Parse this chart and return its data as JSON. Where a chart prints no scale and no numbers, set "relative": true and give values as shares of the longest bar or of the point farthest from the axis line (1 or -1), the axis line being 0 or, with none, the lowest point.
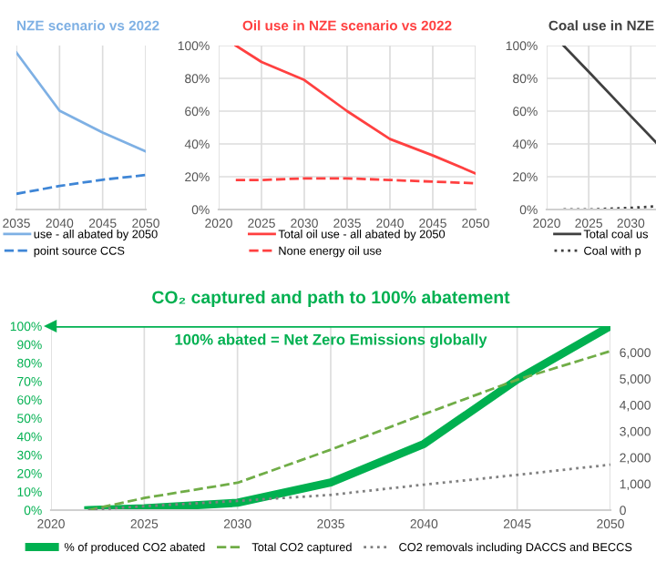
{
  "chart_data": [
    {
      "type": "line",
      "title": "NZE scenario vs 2022",
      "x": [
        2035,
        2040,
        2045,
        2050
      ],
      "xlim": [
        2035,
        2050
      ],
      "xticks": [
        2035,
        2040,
        2045,
        2050
      ],
      "relative": true,
      "grid": "x",
      "legend": "bottom",
      "series": [
        {
          "name": "use - all abated by 2050",
          "color": "#7eb0e4",
          "values": [
            1,
            0.63,
            0.49,
            0.37
          ]
        },
        {
          "name": "point source CCS",
          "color": "#3f86d6",
          "values": [
            0.1,
            0.15,
            0.19,
            0.22
          ],
          "line_style": "dashed"
        }
      ]
    },
    {
      "type": "line",
      "title": "Oil use in NZE scenario vs 2022",
      "x": [
        2022,
        2025,
        2030,
        2035,
        2040,
        2045,
        2050
      ],
      "xlim": [
        2020,
        2050
      ],
      "xticks": [
        2020,
        2025,
        2030,
        2035,
        2040,
        2045,
        2050
      ],
      "ylim": [
        0,
        100
      ],
      "yticks": [
        {
          "value": 0,
          "label": "0%"
        },
        {
          "value": 20,
          "label": "20%"
        },
        {
          "value": 40,
          "label": "40%"
        },
        {
          "value": 60,
          "label": "60%"
        },
        {
          "value": 80,
          "label": "80%"
        },
        {
          "value": 100,
          "label": "100%"
        }
      ],
      "grid": true,
      "legend": "bottom",
      "series": [
        {
          "name": "Total oil use - all abated by 2050",
          "color": "#ff4040",
          "values": [
            100,
            90,
            79,
            60,
            43,
            33,
            22
          ]
        },
        {
          "name": "None energy oil use",
          "color": "#ff4040",
          "values": [
            18,
            18,
            19,
            19,
            18,
            17,
            16
          ],
          "line_style": "dashed"
        }
      ]
    },
    {
      "type": "line",
      "title": "Coal use in NZE",
      "x": [
        2022,
        2025,
        2030,
        2033
      ],
      "xlim": [
        2020,
        2033
      ],
      "xticks": [
        2020,
        2025,
        2030
      ],
      "ylim": [
        0,
        100
      ],
      "yticks": [
        {
          "value": 0,
          "label": "0%"
        },
        {
          "value": 20,
          "label": "20%"
        },
        {
          "value": 40,
          "label": "40%"
        },
        {
          "value": 60,
          "label": "60%"
        },
        {
          "value": 80,
          "label": "80%"
        },
        {
          "value": 100,
          "label": "100%"
        }
      ],
      "grid": true,
      "legend": "bottom",
      "series": [
        {
          "name": "Total coal us",
          "color": "#404040",
          "values": [
            100,
            84,
            57,
            41
          ]
        },
        {
          "name": "Coal with p",
          "color": "#404040",
          "values": [
            0,
            0,
            1,
            2
          ],
          "line_style": "dotted"
        }
      ]
    },
    {
      "type": "line",
      "title": "CO₂ captured and path to 100% abatement",
      "x": [
        2022,
        2025,
        2030,
        2035,
        2040,
        2045,
        2050
      ],
      "xlim": [
        2020,
        2050
      ],
      "xticks": [
        2020,
        2025,
        2030,
        2035,
        2040,
        2045,
        2050
      ],
      "ylim": [
        0,
        100
      ],
      "yticks": [
        {
          "value": 0,
          "label": "0%"
        },
        {
          "value": 10,
          "label": "10%"
        },
        {
          "value": 20,
          "label": "20%"
        },
        {
          "value": 30,
          "label": "30%"
        },
        {
          "value": 40,
          "label": "40%"
        },
        {
          "value": 50,
          "label": "50%"
        },
        {
          "value": 60,
          "label": "60%"
        },
        {
          "value": 70,
          "label": "70%"
        },
        {
          "value": 80,
          "label": "80%"
        },
        {
          "value": 90,
          "label": "90%"
        },
        {
          "value": 100,
          "label": "100%"
        }
      ],
      "y2lim": [
        0,
        7000
      ],
      "y2ticks": [
        {
          "value": 0,
          "label": "0"
        },
        {
          "value": 1000,
          "label": "1,000"
        },
        {
          "value": 2000,
          "label": "2,000"
        },
        {
          "value": 3000,
          "label": "3,000"
        },
        {
          "value": 4000,
          "label": "4,000"
        },
        {
          "value": 5000,
          "label": "5,000"
        },
        {
          "value": 6000,
          "label": "6,000"
        }
      ],
      "grid": "x",
      "legend": "bottom",
      "ref_lines": [
        {
          "axis": "y",
          "value": 100,
          "label": "100% abated = Net Zero Emissions globally",
          "color": "#00b050"
        }
      ],
      "series": [
        {
          "name": "% of produced CO2 abated",
          "color": "#00b050",
          "values": [
            0,
            1,
            4,
            15,
            36,
            71,
            100
          ]
        },
        {
          "name": "Total CO2 captured",
          "color": "#70ad47",
          "axis": "y2",
          "line_style": "dashed",
          "values": [
            0,
            460,
            1040,
            2300,
            3650,
            4960,
            6050
          ]
        },
        {
          "name": "CO2 removals including DACCS and BECCS",
          "color": "#808080",
          "axis": "y2",
          "line_style": "dotted",
          "values": [
            0,
            150,
            350,
            580,
            970,
            1340,
            1730
          ]
        }
      ]
    }
  ]
}
